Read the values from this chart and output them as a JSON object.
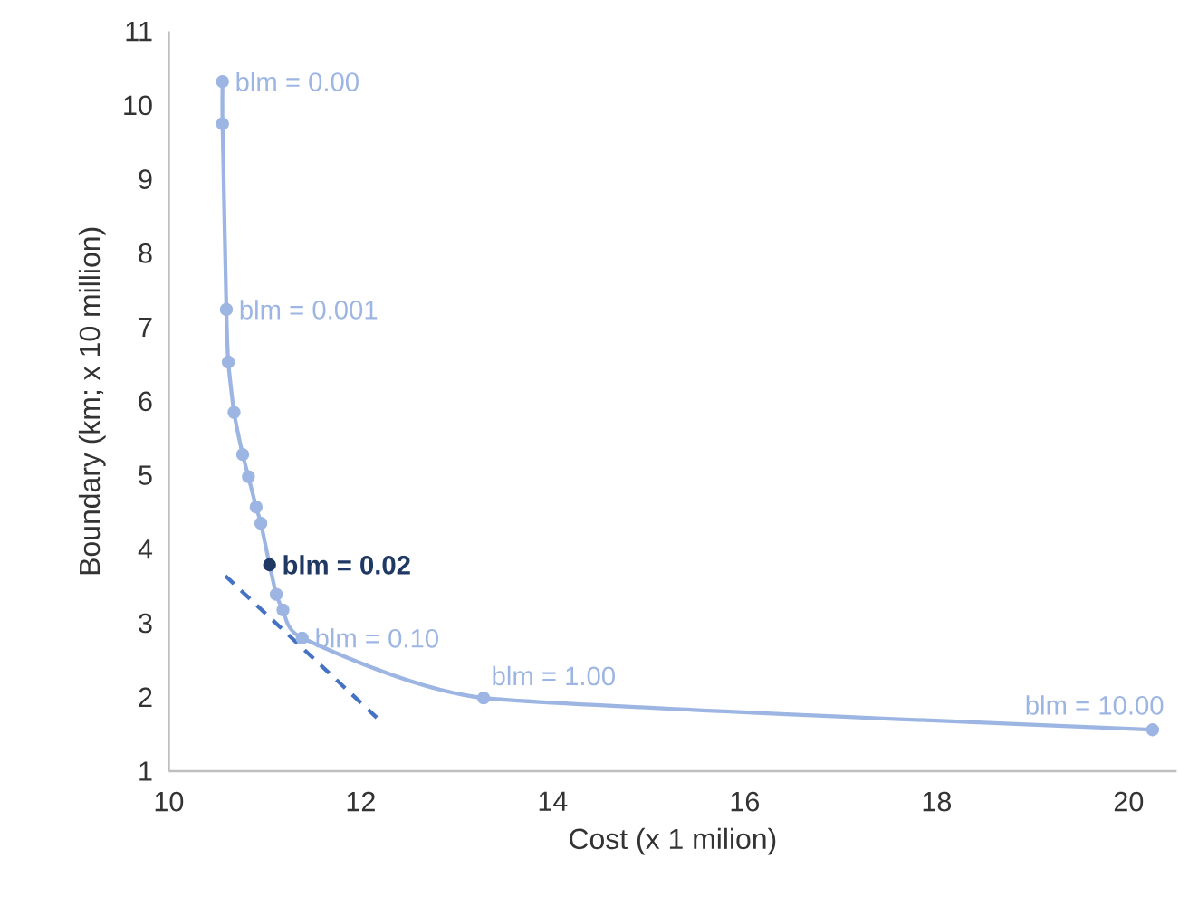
{
  "chart_data": {
    "type": "line",
    "xlabel": "Cost (x 1 milion)",
    "ylabel": "Boundary (km; x 10 million)",
    "xlim": [
      10,
      20.5
    ],
    "ylim": [
      1,
      11
    ],
    "xticks": [
      10,
      12,
      14,
      16,
      18,
      20
    ],
    "yticks": [
      1,
      2,
      3,
      4,
      5,
      6,
      7,
      8,
      9,
      10,
      11
    ],
    "series": [
      {
        "color": "#9db5e3",
        "colors": [
          "#9db5e3",
          "#9db5e3",
          "#9db5e3",
          "#9db5e3",
          "#9db5e3",
          "#9db5e3",
          "#9db5e3",
          "#9db5e3",
          "#9db5e3",
          "#1f3864",
          "#9db5e3",
          "#9db5e3",
          "#9db5e3",
          "#9db5e3",
          "#9db5e3"
        ],
        "marker": "circle",
        "line_style": "solid",
        "x": [
          10.56,
          10.56,
          10.6,
          10.62,
          10.68,
          10.77,
          10.83,
          10.91,
          10.96,
          11.05,
          11.12,
          11.19,
          11.39,
          13.28,
          20.25
        ],
        "values": [
          10.32,
          9.75,
          7.24,
          6.53,
          5.85,
          5.28,
          4.98,
          4.57,
          4.35,
          3.79,
          3.39,
          3.18,
          2.8,
          1.99,
          1.56
        ]
      },
      {
        "type": "line",
        "color": "#4472c4",
        "marker": "none",
        "line_style": "dashed",
        "x": [
          10.59,
          12.17
        ],
        "values": [
          3.64,
          1.72
        ]
      }
    ],
    "annotations": [
      {
        "text": "blm = 0.00",
        "x": 10.56,
        "y": 10.32
      },
      {
        "text": "blm = 0.001",
        "x": 10.6,
        "y": 7.24
      },
      {
        "text": "**blm = 0.02**",
        "x": 11.05,
        "y": 3.79
      },
      {
        "text": "blm = 0.10",
        "x": 11.39,
        "y": 2.8
      },
      {
        "text": "blm = 1.00",
        "x": 13.28,
        "y": 1.99
      },
      {
        "text": "blm = 10.00",
        "x": 20.25,
        "y": 1.56
      }
    ]
  }
}
